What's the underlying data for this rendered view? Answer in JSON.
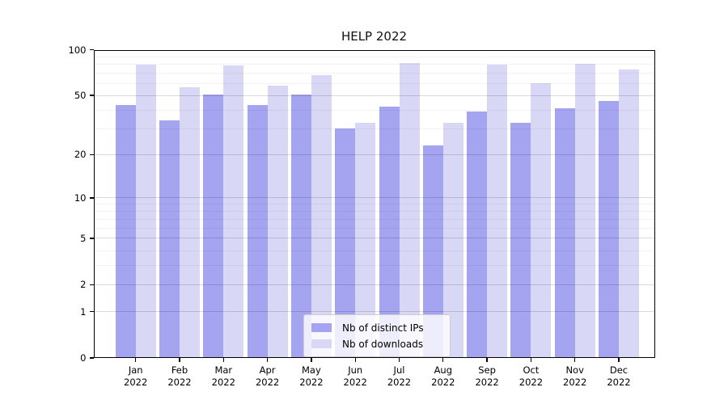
{
  "chart_data": {
    "type": "bar",
    "title": "HELP 2022",
    "categories": [
      "Jan",
      "Feb",
      "Mar",
      "Apr",
      "May",
      "Jun",
      "Jul",
      "Aug",
      "Sep",
      "Oct",
      "Nov",
      "Dec"
    ],
    "category_year": "2022",
    "series": [
      {
        "name": "Nb of distinct IPs",
        "color": "#a4a4f0",
        "values": [
          43,
          34,
          51,
          43,
          51,
          30,
          42,
          23,
          39,
          33,
          41,
          46
        ]
      },
      {
        "name": "Nb of downloads",
        "color": "#d8d8f6",
        "values": [
          80,
          57,
          79,
          58,
          68,
          33,
          82,
          33,
          80,
          60,
          81,
          74
        ]
      }
    ],
    "xlabel": "",
    "ylabel": "",
    "yscale": "symlog",
    "ylim": [
      0,
      100
    ],
    "yticks": [
      0,
      1,
      2,
      5,
      10,
      20,
      50,
      100
    ],
    "minor_yticks": [
      3,
      4,
      6,
      7,
      8,
      9,
      30,
      40,
      60,
      70,
      80,
      90
    ],
    "grid": true,
    "legend_position": "lower center"
  }
}
